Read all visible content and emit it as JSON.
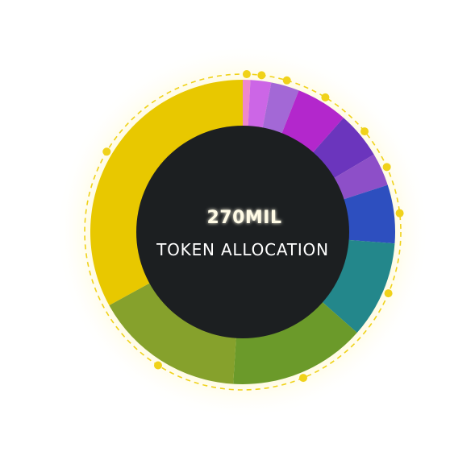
{
  "chart_data": {
    "type": "pie",
    "center_total": "270MIL",
    "center_label": "TOKEN ALLOCATION",
    "legend": "none",
    "slices": [
      {
        "value": 0.8,
        "color": "#ee88cc"
      },
      {
        "value": 2.2,
        "color": "#cc66e6"
      },
      {
        "value": 3.0,
        "color": "#a368d6"
      },
      {
        "value": 5.5,
        "color": "#b327cc"
      },
      {
        "value": 5.0,
        "color": "#6b35bd"
      },
      {
        "value": 3.5,
        "color": "#8d4fc8"
      },
      {
        "value": 6.2,
        "color": "#2d4fbf"
      },
      {
        "value": 10.3,
        "color": "#23878b"
      },
      {
        "value": 14.5,
        "color": "#6b9a2a"
      },
      {
        "value": 16.0,
        "color": "#86a12c"
      },
      {
        "value": 33.0,
        "color": "#e8c800"
      }
    ]
  },
  "colors": {
    "center_fill": "#1c1f21",
    "accent_ring": "#f0d21a",
    "glow": "#fff3a0"
  }
}
